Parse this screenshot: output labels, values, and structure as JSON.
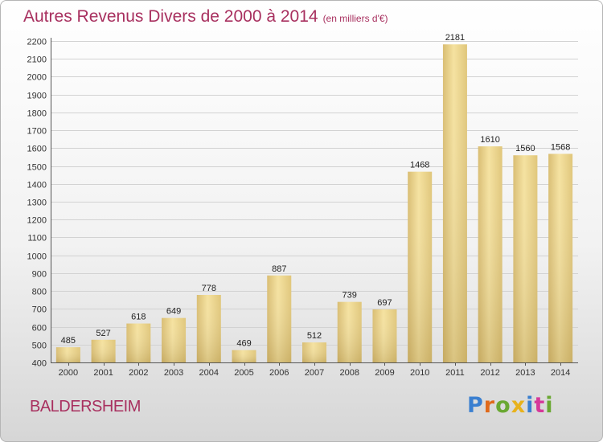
{
  "header": {
    "title": "Autres Revenus Divers de 2000 à 2014",
    "subtitle": "(en milliers d'€)"
  },
  "footer": {
    "commune": "BALDERSHEIM",
    "logo": "Proxiti",
    "logo_colors": [
      "#3a7fd0",
      "#e06a1b",
      "#6aa832",
      "#e8b21c",
      "#3a7fd0",
      "#d6389a",
      "#6aa832"
    ]
  },
  "chart_data": {
    "type": "bar",
    "title": "Autres Revenus Divers de 2000 à 2014",
    "subtitle": "(en milliers d'€)",
    "categories": [
      "2000",
      "2001",
      "2002",
      "2003",
      "2004",
      "2005",
      "2006",
      "2007",
      "2008",
      "2009",
      "2010",
      "2011",
      "2012",
      "2013",
      "2014"
    ],
    "values": [
      485,
      527,
      618,
      649,
      778,
      469,
      887,
      512,
      739,
      697,
      1468,
      2181,
      1610,
      1560,
      1568
    ],
    "ylim": [
      400,
      2200
    ],
    "yticks": [
      400,
      500,
      600,
      700,
      800,
      900,
      1000,
      1100,
      1200,
      1300,
      1400,
      1500,
      1600,
      1700,
      1800,
      1900,
      2000,
      2100,
      2200
    ],
    "grid": true,
    "bar_color": "#ecd58c",
    "bar_color_dark": "#c9ad63"
  }
}
